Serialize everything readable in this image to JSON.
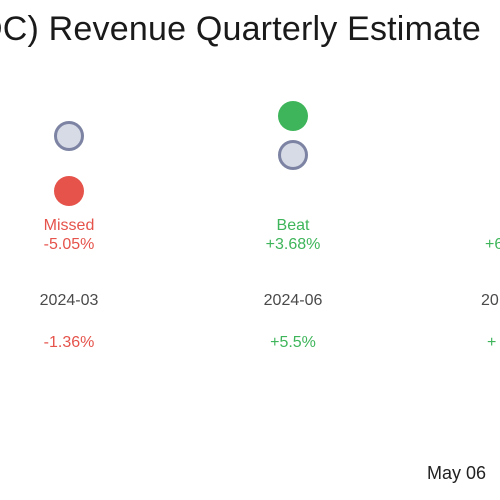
{
  "title": "DC) Revenue Quarterly Estimate",
  "footer": "May 06",
  "colors": {
    "beat": "#3eb55a",
    "missed": "#e5534b",
    "estimate": "#d7dbe6"
  },
  "chart_data": {
    "type": "scatter",
    "title": "DC) Revenue Quarterly Estimate",
    "categories": [
      "2024-03",
      "2024-06",
      "20"
    ],
    "series": [
      {
        "result": "Missed",
        "surprise": "-5.05%",
        "period": "2024-03",
        "change": "-1.36%"
      },
      {
        "result": "Beat",
        "surprise": "+3.68%",
        "period": "2024-06",
        "change": "+5.5%"
      },
      {
        "result": "",
        "surprise": "+6",
        "period": "20",
        "change": "+"
      }
    ]
  }
}
